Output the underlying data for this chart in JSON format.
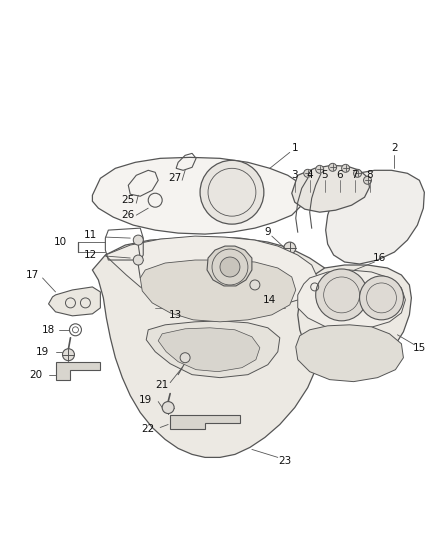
{
  "bg_color": "#ffffff",
  "line_color": "#555555",
  "label_color": "#111111",
  "figsize": [
    4.38,
    5.33
  ],
  "dpi": 100,
  "font_size": 7.5
}
